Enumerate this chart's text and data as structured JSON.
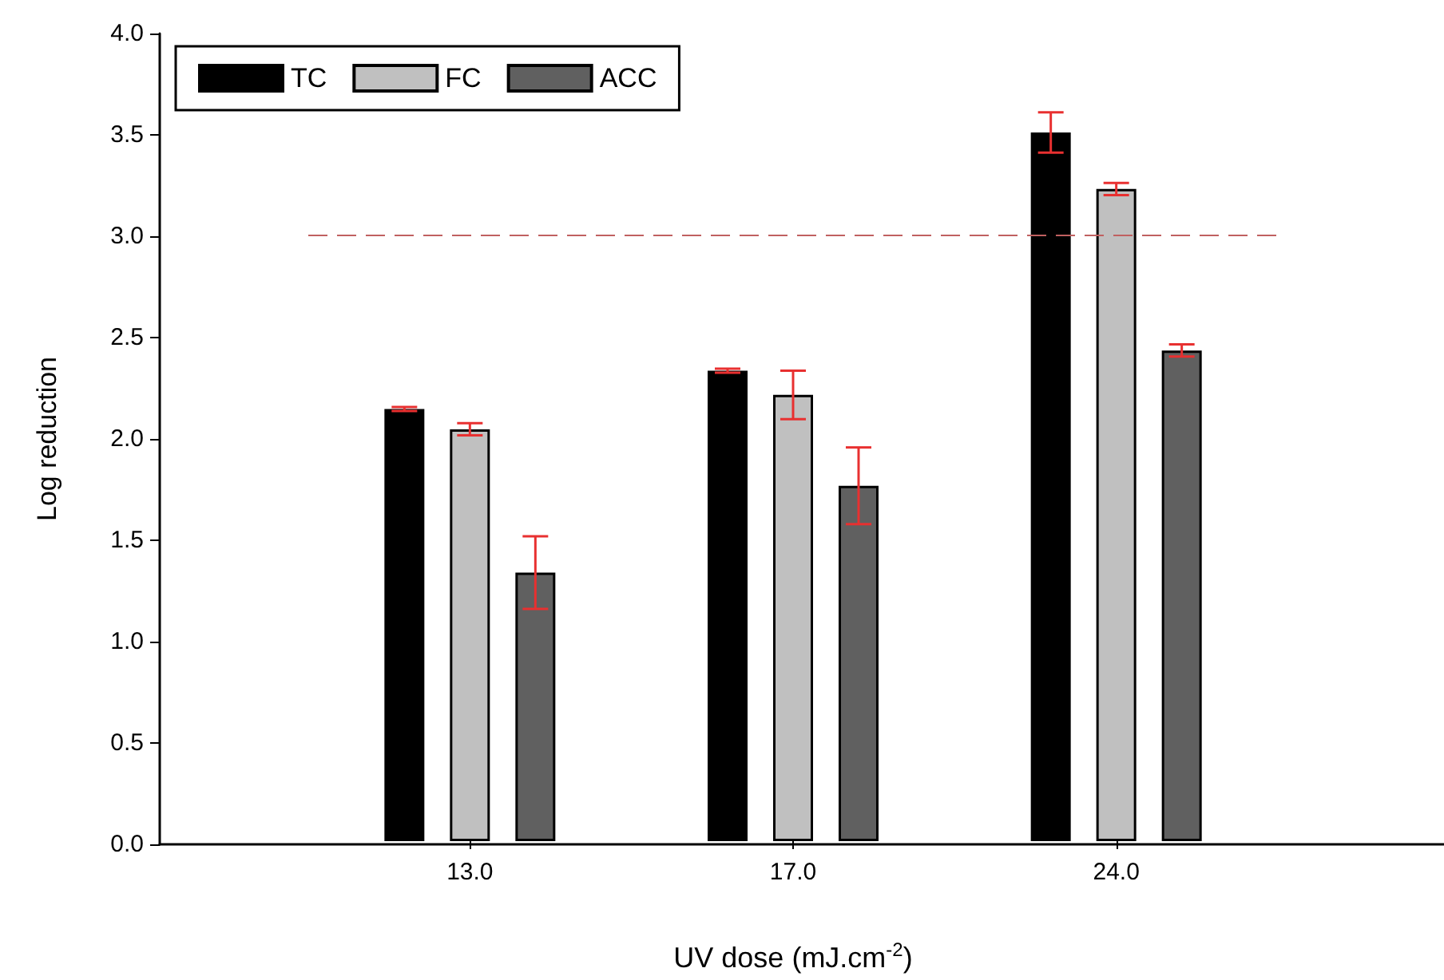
{
  "chart_data": {
    "type": "bar",
    "xlabel": "UV dose (mJ.cm$^{-2}$)",
    "ylabel": "Log reduction",
    "categories": [
      "13.0",
      "17.0",
      "24.0"
    ],
    "series": [
      {
        "name": "TC",
        "color": "#000000",
        "values": [
          2.14,
          2.33,
          3.51
        ],
        "errors": [
          0.01,
          0.01,
          0.1
        ]
      },
      {
        "name": "FC",
        "color": "#c0c0c0",
        "values": [
          2.04,
          2.21,
          3.23
        ],
        "errors": [
          0.03,
          0.12,
          0.03
        ]
      },
      {
        "name": "ACC",
        "color": "#606060",
        "values": [
          1.33,
          1.76,
          2.43
        ],
        "errors": [
          0.18,
          0.19,
          0.03
        ]
      }
    ],
    "ylim": [
      0,
      4
    ],
    "yticks": [
      {
        "value": 0,
        "label": "0.0"
      },
      0.5,
      {
        "value": 1,
        "label": "1.0"
      },
      1.5,
      {
        "value": 2,
        "label": "2.0"
      },
      2.5,
      {
        "value": 3,
        "label": "3.0"
      },
      3.5,
      {
        "value": 4,
        "label": "4.0"
      }
    ],
    "ref_lines": [
      {
        "axis": "y",
        "value": 3,
        "color": "#c06060",
        "line_style": "dashed"
      }
    ],
    "legend": "top left",
    "grid": false
  }
}
